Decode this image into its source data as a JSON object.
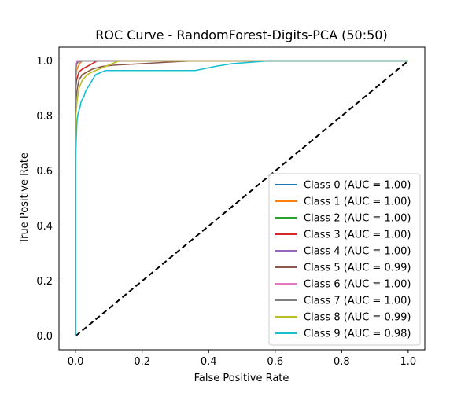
{
  "chart_data": {
    "type": "line",
    "title": "ROC Curve - RandomForest-Digits-PCA (50:50)",
    "xlabel": "False Positive Rate",
    "ylabel": "True Positive Rate",
    "xlim": [
      -0.05,
      1.05
    ],
    "ylim": [
      -0.05,
      1.05
    ],
    "xticks": [
      0.0,
      0.2,
      0.4,
      0.6,
      0.8,
      1.0
    ],
    "yticks": [
      0.0,
      0.2,
      0.4,
      0.6,
      0.8,
      1.0
    ],
    "xtick_labels": [
      "0.0",
      "0.2",
      "0.4",
      "0.6",
      "0.8",
      "1.0"
    ],
    "ytick_labels": [
      "0.0",
      "0.2",
      "0.4",
      "0.6",
      "0.8",
      "1.0"
    ],
    "grid": false,
    "legend_position": "lower-right",
    "diagonal": {
      "x": [
        0,
        1
      ],
      "y": [
        0,
        1
      ],
      "color": "#000000",
      "style": "dashed"
    },
    "series": [
      {
        "name": "Class 0 (AUC = 1.00)",
        "color": "#1f77b4",
        "x": [
          0,
          0,
          0.005,
          1
        ],
        "y": [
          0,
          0.97,
          1.0,
          1.0
        ]
      },
      {
        "name": "Class 1 (AUC = 1.00)",
        "color": "#ff7f0e",
        "x": [
          0,
          0,
          0.004,
          0.012,
          0.02,
          1
        ],
        "y": [
          0,
          0.93,
          0.97,
          0.99,
          1.0,
          1.0
        ]
      },
      {
        "name": "Class 2 (AUC = 1.00)",
        "color": "#2ca02c",
        "x": [
          0,
          0,
          0.006,
          1
        ],
        "y": [
          0,
          0.98,
          1.0,
          1.0
        ]
      },
      {
        "name": "Class 3 (AUC = 1.00)",
        "color": "#d62728",
        "x": [
          0,
          0,
          0.003,
          0.01,
          0.02,
          0.035,
          0.05,
          0.065,
          1
        ],
        "y": [
          0,
          0.9,
          0.93,
          0.96,
          0.97,
          0.98,
          0.99,
          1.0,
          1.0
        ]
      },
      {
        "name": "Class 4 (AUC = 1.00)",
        "color": "#9467bd",
        "x": [
          0,
          0,
          0.004,
          0.02,
          1
        ],
        "y": [
          0,
          0.99,
          0.995,
          1.0,
          1.0
        ]
      },
      {
        "name": "Class 5 (AUC = 0.99)",
        "color": "#8c564b",
        "x": [
          0,
          0,
          0.005,
          0.01,
          0.02,
          0.035,
          0.05,
          0.08,
          0.12,
          0.2,
          0.27,
          0.35,
          1
        ],
        "y": [
          0,
          0.85,
          0.9,
          0.93,
          0.95,
          0.96,
          0.97,
          0.98,
          0.985,
          0.99,
          0.995,
          1.0,
          1.0
        ]
      },
      {
        "name": "Class 6 (AUC = 1.00)",
        "color": "#e377c2",
        "x": [
          0,
          0,
          0.003,
          1
        ],
        "y": [
          0,
          0.99,
          1.0,
          1.0
        ]
      },
      {
        "name": "Class 7 (AUC = 1.00)",
        "color": "#7f7f7f",
        "x": [
          0,
          0,
          0.004,
          0.012,
          1
        ],
        "y": [
          0,
          0.97,
          0.99,
          1.0,
          1.0
        ]
      },
      {
        "name": "Class 8 (AUC = 0.99)",
        "color": "#bcbd22",
        "x": [
          0,
          0,
          0.005,
          0.01,
          0.02,
          0.035,
          0.05,
          0.07,
          0.09,
          0.11,
          0.13,
          1
        ],
        "y": [
          0,
          0.8,
          0.86,
          0.9,
          0.93,
          0.95,
          0.96,
          0.97,
          0.98,
          0.99,
          1.0,
          1.0
        ]
      },
      {
        "name": "Class 9 (AUC = 0.98)",
        "color": "#17becf",
        "x": [
          0,
          0,
          0.002,
          0.004,
          0.006,
          0.008,
          0.01,
          0.013,
          0.016,
          0.02,
          0.025,
          0.03,
          0.035,
          0.04,
          0.045,
          0.05,
          0.055,
          0.06,
          0.07,
          0.08,
          0.09,
          0.1,
          0.36,
          0.42,
          0.47,
          0.58,
          1
        ],
        "y": [
          0,
          0.64,
          0.72,
          0.78,
          0.8,
          0.81,
          0.82,
          0.83,
          0.85,
          0.86,
          0.87,
          0.89,
          0.9,
          0.91,
          0.92,
          0.93,
          0.94,
          0.95,
          0.955,
          0.96,
          0.965,
          0.965,
          0.965,
          0.98,
          0.99,
          1.0,
          1.0
        ]
      }
    ]
  }
}
